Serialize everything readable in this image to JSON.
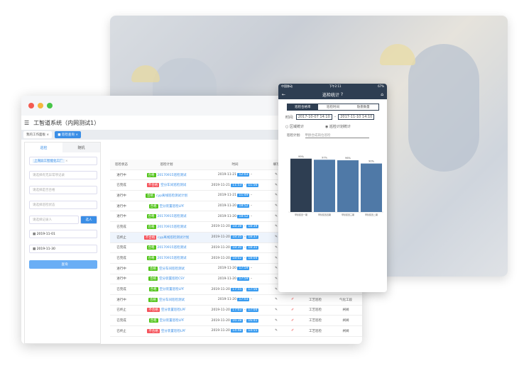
{
  "desktop": {
    "app_title": "工智道系统（内网测试1）",
    "tabs": [
      {
        "label": "我的工作面板"
      },
      {
        "label": "巡检查询"
      }
    ],
    "left_tabs": [
      "巡检",
      "随机"
    ],
    "factory_tag": "上海异工智能化工厂",
    "filters": [
      "请选择有无异常项记录",
      "请选择是否合格",
      "请选择巡检状态",
      "请选择记录人"
    ],
    "select_button": "选人",
    "date_start": "2019-11-01",
    "date_end": "2019-11-30",
    "query_button": "查询",
    "columns": [
      "巡检状态",
      "巡检计划",
      "时间",
      "填写"
    ],
    "rows": [
      {
        "status": "进行中",
        "result": "合格",
        "plan": "20170915巡检测试",
        "date": "2019-11-21",
        "start": "12:03",
        "end": ""
      },
      {
        "status": "已完成",
        "result": "不合格",
        "plan": "空分车间巡检测试",
        "date": "2019-11-21",
        "start": "11:53",
        "end": "11:56"
      },
      {
        "status": "进行中",
        "result": "合格",
        "plan": "cyp离线巡检测试计划",
        "date": "2019-11-21",
        "start": "11:49",
        "end": ""
      },
      {
        "status": "进行中",
        "result": "合格",
        "plan": "空分装置巡检LPF",
        "date": "2019-11-20",
        "start": "18:52",
        "end": ""
      },
      {
        "status": "进行中",
        "result": "合格",
        "plan": "20170915巡检测试",
        "date": "2019-11-20",
        "start": "18:52",
        "end": ""
      },
      {
        "status": "已完成",
        "result": "合格",
        "plan": "20170915巡检测试",
        "date": "2019-11-20",
        "start": "18:38",
        "end": "18:39"
      },
      {
        "status": "已终止",
        "result": "不合格",
        "plan": "cyp离线巡检测试计划",
        "date": "2019-11-20",
        "start": "18:35",
        "end": "18:37"
      },
      {
        "status": "已完成",
        "result": "合格",
        "plan": "20170915巡检测试",
        "date": "2019-11-20",
        "start": "18:30",
        "end": "18:31"
      },
      {
        "status": "已完成",
        "result": "合格",
        "plan": "20170915巡检测试",
        "date": "2019-11-20",
        "start": "18:02",
        "end": "18:04"
      },
      {
        "status": "进行中",
        "result": "合格",
        "plan": "空分车间巡检测试",
        "date": "2019-11-20",
        "start": "17:59",
        "end": ""
      },
      {
        "status": "进行中",
        "result": "合格",
        "plan": "空分装置巡检CSY",
        "date": "2019-11-20",
        "start": "17:59",
        "end": ""
      },
      {
        "status": "已完成",
        "result": "合格",
        "plan": "空分装置巡检LPF",
        "date": "2019-11-20",
        "start": "17:55",
        "end": "17:56",
        "type": "工艺巡检",
        "dept": "闸阀"
      },
      {
        "status": "进行中",
        "result": "合格",
        "plan": "空分车间巡检测试",
        "date": "2019-11-20",
        "start": "17:03",
        "end": "",
        "type": "工艺巡检",
        "dept": "气化工段"
      },
      {
        "status": "已终止",
        "result": "不合格",
        "plan": "空分装置巡检LPF",
        "date": "2019-11-20",
        "start": "17:03",
        "end": "17:04",
        "type": "工艺巡检",
        "dept": "闸阀"
      },
      {
        "status": "已完成",
        "result": "合格",
        "plan": "空分装置巡检LPF",
        "date": "2019-11-20",
        "start": "16:38",
        "end": "16:41",
        "type": "工艺巡检",
        "dept": "闸阀"
      },
      {
        "status": "已终止",
        "result": "不合格",
        "plan": "空分装置巡检LPF",
        "date": "2019-11-20",
        "start": "14:48",
        "end": "14:55",
        "type": "工艺巡检",
        "dept": "闸阀"
      }
    ]
  },
  "phone": {
    "carrier": "中国移动",
    "clock": "下午2:11",
    "battery": "67%",
    "title": "巡检统计",
    "segments": [
      "巡检合格率",
      "巡检时间",
      "隐患数量"
    ],
    "time_label": "时间:",
    "time_from": "2017-10-07 14:10",
    "time_to": "2017-11-10 14:10",
    "radio_area": "区域统计",
    "radio_plan": "巡检计划统计",
    "plan_label": "巡检计划:",
    "plan_placeholder": "甲醇合成岗位巡检"
  },
  "chart_data": {
    "type": "bar",
    "categories": [
      "甲醇装置一期",
      "甲醇装置四期",
      "甲醇装置三期",
      "甲醇装置二期"
    ],
    "values": [
      99,
      97,
      96,
      90
    ],
    "labels": [
      "99%",
      "97%",
      "96%",
      "90%"
    ],
    "colors": [
      "#2e3e52",
      "#4f79a7",
      "#4f79a7",
      "#4f79a7"
    ],
    "ylim": [
      0,
      100
    ]
  }
}
